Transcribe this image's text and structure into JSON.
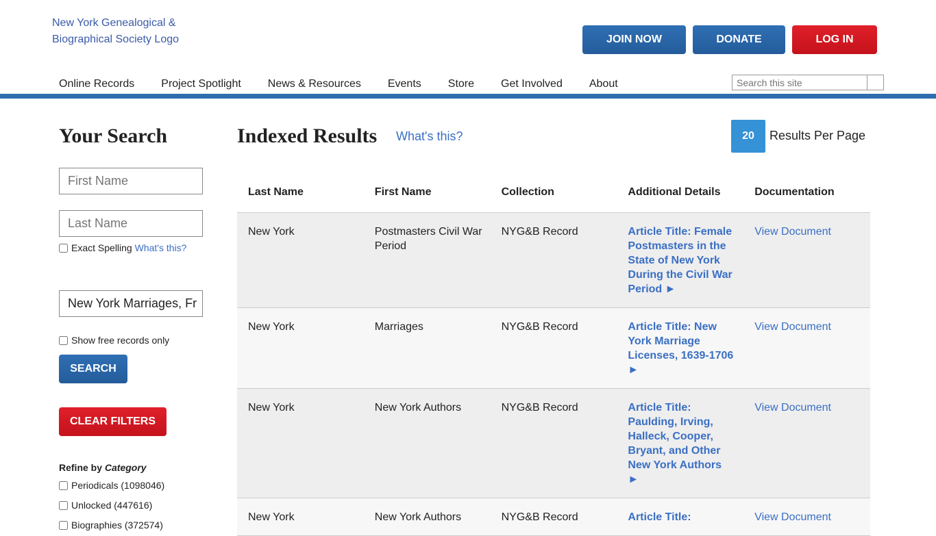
{
  "header": {
    "logo_alt": "New York Genealogical & Biographical Society Logo",
    "join": "JOIN NOW",
    "donate": "DONATE",
    "login": "LOG IN",
    "nav": [
      "Online Records",
      "Project Spotlight",
      "News & Resources",
      "Events",
      "Store",
      "Get Involved",
      "About"
    ],
    "search_placeholder": "Search this site"
  },
  "sidebar": {
    "title": "Your Search",
    "first_placeholder": "First Name",
    "last_placeholder": "Last Name",
    "exact": "Exact Spelling",
    "whats_this": "What's this?",
    "collection_value": "New York Marriages, Fr",
    "free_only": "Show free records only",
    "search": "SEARCH",
    "clear": "CLEAR FILTERS",
    "refine_prefix": "Refine by",
    "refine_em": "Category",
    "categories": [
      "Periodicals (1098046)",
      "Unlocked (447616)",
      "Biographies (372574)"
    ]
  },
  "main": {
    "title": "Indexed Results",
    "whats_this": "What's this?",
    "per_page": "20",
    "per_page_label": "Results Per Page",
    "columns": [
      "Last Name",
      "First Name",
      "Collection",
      "Additional Details",
      "Documentation"
    ],
    "rows": [
      {
        "last": "New York",
        "first": "Postmasters Civil War Period",
        "collection": "NYG&B Record",
        "details": "Article Title: Female Postmasters in the State of New York During the Civil War Period ►",
        "doc": "View Document"
      },
      {
        "last": "New York",
        "first": "Marriages",
        "collection": "NYG&B Record",
        "details": "Article Title: New York Marriage Licenses, 1639-1706 ►",
        "doc": "View Document"
      },
      {
        "last": "New York",
        "first": "New York Authors",
        "collection": "NYG&B Record",
        "details": "Article Title: Paulding, Irving, Halleck, Cooper, Bryant, and Other New York Authors ►",
        "doc": "View Document"
      },
      {
        "last": "New York",
        "first": "New York Authors",
        "collection": "NYG&B Record",
        "details": "Article Title:",
        "doc": "View Document"
      }
    ]
  }
}
